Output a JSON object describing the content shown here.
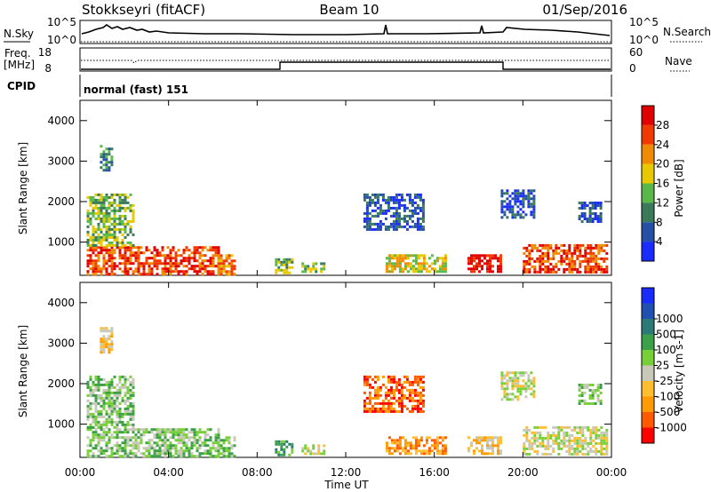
{
  "header": {
    "station": "Stokkseyri (fitACF)",
    "beam": "Beam 10",
    "date": "01/Sep/2016"
  },
  "panels": {
    "nsky_label": "N.Sky",
    "nsky_ticks": [
      "10^5",
      "10^0"
    ],
    "nsearch_label": "N.Search",
    "nsearch_ticks": [
      "10^5",
      "10^0"
    ],
    "freq_label_top": "Freq.",
    "freq_label_unit": "[MHz]",
    "freq_ticks": [
      "18",
      "8"
    ],
    "nave_label": "Nave",
    "nave_ticks": [
      "60",
      "0"
    ],
    "cpid_label": "CPID",
    "cpid_value": "normal (fast) 151"
  },
  "colors": {
    "power": [
      "#1a2bff",
      "#2450a6",
      "#3a7a5a",
      "#5ab848",
      "#e8c800",
      "#f08a00",
      "#f03a00",
      "#e00000"
    ],
    "velocity": [
      "#ff0000",
      "#ff5a00",
      "#ff9a00",
      "#ffbe30",
      "#c8c8b8",
      "#78d038",
      "#3ca048",
      "#2a7a78",
      "#2050b0",
      "#1a2bff"
    ]
  },
  "chart_data": [
    {
      "type": "heatmap",
      "name": "power",
      "ylabel": "Slant Range [km]",
      "xlabel": "Time UT",
      "x_ticks": [
        "00:00",
        "04:00",
        "08:00",
        "12:00",
        "16:00",
        "20:00",
        "00:00"
      ],
      "y_ticks": [
        "1000",
        "2000",
        "3000",
        "4000"
      ],
      "xlim_hours": [
        0,
        24
      ],
      "ylim_km": [
        180,
        4500
      ],
      "colorbar_label": "Power [dB]",
      "colorbar_ticks": [
        "4",
        "8",
        "12",
        "16",
        "20",
        "24",
        "28"
      ],
      "regions": [
        {
          "t0": 0.3,
          "t1": 6.2,
          "r0": 200,
          "r1": 900,
          "level": 6
        },
        {
          "t0": 0.3,
          "t1": 2.4,
          "r0": 900,
          "r1": 2200,
          "level": 3
        },
        {
          "t0": 0.9,
          "t1": 1.5,
          "r0": 2800,
          "r1": 3400,
          "level": 2
        },
        {
          "t0": 6.2,
          "t1": 7.0,
          "r0": 220,
          "r1": 700,
          "level": 5
        },
        {
          "t0": 8.8,
          "t1": 9.6,
          "r0": 250,
          "r1": 600,
          "level": 3
        },
        {
          "t0": 10.0,
          "t1": 11.0,
          "r0": 250,
          "r1": 500,
          "level": 3
        },
        {
          "t0": 12.8,
          "t1": 15.5,
          "r0": 1300,
          "r1": 2200,
          "level": 1
        },
        {
          "t0": 13.8,
          "t1": 16.5,
          "r0": 250,
          "r1": 700,
          "level": 4
        },
        {
          "t0": 17.5,
          "t1": 19.0,
          "r0": 250,
          "r1": 700,
          "level": 7
        },
        {
          "t0": 19.0,
          "t1": 20.5,
          "r0": 1600,
          "r1": 2300,
          "level": 1
        },
        {
          "t0": 20.0,
          "t1": 23.8,
          "r0": 250,
          "r1": 950,
          "level": 6
        },
        {
          "t0": 22.5,
          "t1": 23.5,
          "r0": 1500,
          "r1": 2000,
          "level": 1
        }
      ]
    },
    {
      "type": "heatmap",
      "name": "velocity",
      "ylabel": "Slant Range [km]",
      "xlabel": "Time UT",
      "x_ticks": [
        "00:00",
        "04:00",
        "08:00",
        "12:00",
        "16:00",
        "20:00",
        "00:00"
      ],
      "y_ticks": [
        "1000",
        "2000",
        "3000",
        "4000"
      ],
      "xlim_hours": [
        0,
        24
      ],
      "ylim_km": [
        180,
        4500
      ],
      "colorbar_label": "Velocity [m s-1]",
      "colorbar_ticks": [
        "-1000",
        "-500",
        "-100",
        "-25",
        "25",
        "100",
        "500",
        "1000"
      ],
      "regions": [
        {
          "t0": 0.3,
          "t1": 6.2,
          "r0": 200,
          "r1": 900,
          "level": 5
        },
        {
          "t0": 0.3,
          "t1": 2.4,
          "r0": 900,
          "r1": 2200,
          "level": 5
        },
        {
          "t0": 0.9,
          "t1": 1.5,
          "r0": 2800,
          "r1": 3400,
          "level": 3
        },
        {
          "t0": 6.2,
          "t1": 7.0,
          "r0": 220,
          "r1": 700,
          "level": 5
        },
        {
          "t0": 8.8,
          "t1": 9.6,
          "r0": 250,
          "r1": 600,
          "level": 6
        },
        {
          "t0": 10.0,
          "t1": 11.0,
          "r0": 250,
          "r1": 500,
          "level": 4
        },
        {
          "t0": 12.8,
          "t1": 15.5,
          "r0": 1300,
          "r1": 2200,
          "level": 1
        },
        {
          "t0": 13.8,
          "t1": 16.5,
          "r0": 250,
          "r1": 700,
          "level": 2
        },
        {
          "t0": 17.5,
          "t1": 19.0,
          "r0": 250,
          "r1": 700,
          "level": 3
        },
        {
          "t0": 19.0,
          "t1": 20.5,
          "r0": 1600,
          "r1": 2300,
          "level": 4
        },
        {
          "t0": 20.0,
          "t1": 23.8,
          "r0": 250,
          "r1": 950,
          "level": 4
        },
        {
          "t0": 22.5,
          "t1": 23.5,
          "r0": 1500,
          "r1": 2000,
          "level": 5
        }
      ]
    }
  ]
}
